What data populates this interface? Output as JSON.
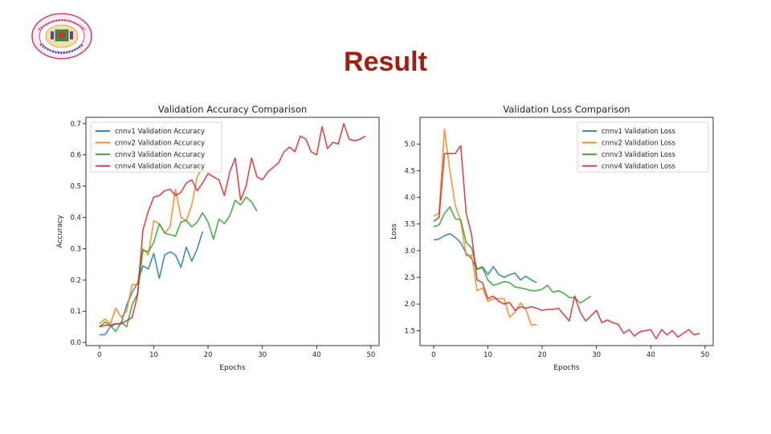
{
  "slide": {
    "title": "Result"
  },
  "colors": {
    "title": "#a51d12",
    "cnnv1": "#1f77b4",
    "cnnv2": "#ff7f0e",
    "cnnv3": "#2ca02c",
    "cnnv4": "#d62728"
  },
  "chart_data": [
    {
      "type": "line",
      "title": "Validation Accuracy Comparison",
      "xlabel": "Epochs",
      "ylabel": "Accuracy",
      "xlim": [
        -2.5,
        51.5
      ],
      "ylim": [
        -0.01,
        0.72
      ],
      "xticks": [
        0,
        10,
        20,
        30,
        40,
        50
      ],
      "yticks": [
        0.0,
        0.1,
        0.2,
        0.3,
        0.4,
        0.5,
        0.6,
        0.7
      ],
      "yticklabels": [
        "0.0",
        "0.1",
        "0.2",
        "0.3",
        "0.4",
        "0.5",
        "0.6",
        "0.7"
      ],
      "legend": "upper-left",
      "grid": false,
      "series": [
        {
          "name": "cnnv1 Validation Accuracy",
          "color": "#1f77b4",
          "x": [
            0,
            1,
            2,
            3,
            4,
            5,
            6,
            7,
            8,
            9,
            10,
            11,
            12,
            13,
            14,
            15,
            16,
            17,
            18,
            19
          ],
          "values": [
            0.025,
            0.025,
            0.05,
            0.06,
            0.06,
            0.12,
            0.16,
            0.19,
            0.245,
            0.235,
            0.285,
            0.205,
            0.28,
            0.29,
            0.28,
            0.24,
            0.305,
            0.26,
            0.3,
            0.355
          ]
        },
        {
          "name": "cnnv2 Validation Accuracy",
          "color": "#ff7f0e",
          "x": [
            0,
            1,
            2,
            3,
            4,
            5,
            6,
            7,
            8,
            9,
            10,
            11,
            12,
            13,
            14,
            15,
            16,
            17,
            18,
            19
          ],
          "values": [
            0.06,
            0.075,
            0.06,
            0.11,
            0.08,
            0.1,
            0.185,
            0.185,
            0.3,
            0.28,
            0.39,
            0.38,
            0.35,
            0.37,
            0.49,
            0.4,
            0.39,
            0.44,
            0.53,
            0.56
          ]
        },
        {
          "name": "cnnv3 Validation Accuracy",
          "color": "#2ca02c",
          "x": [
            0,
            1,
            2,
            3,
            4,
            5,
            6,
            7,
            8,
            9,
            10,
            11,
            12,
            13,
            14,
            15,
            16,
            17,
            18,
            19,
            20,
            21,
            22,
            23,
            24,
            25,
            26,
            27,
            28,
            29
          ],
          "values": [
            0.05,
            0.065,
            0.055,
            0.035,
            0.065,
            0.05,
            0.12,
            0.155,
            0.295,
            0.29,
            0.32,
            0.38,
            0.35,
            0.345,
            0.34,
            0.385,
            0.39,
            0.37,
            0.385,
            0.415,
            0.385,
            0.33,
            0.395,
            0.38,
            0.405,
            0.455,
            0.44,
            0.465,
            0.45,
            0.42
          ]
        },
        {
          "name": "cnnv4 Validation Accuracy",
          "color": "#d62728",
          "x": [
            0,
            1,
            2,
            3,
            4,
            5,
            6,
            7,
            8,
            9,
            10,
            11,
            12,
            13,
            14,
            15,
            16,
            17,
            18,
            19,
            20,
            21,
            22,
            23,
            24,
            25,
            26,
            27,
            28,
            29,
            30,
            31,
            32,
            33,
            34,
            35,
            36,
            37,
            38,
            39,
            40,
            41,
            42,
            43,
            44,
            45,
            46,
            47,
            48,
            49
          ],
          "values": [
            0.05,
            0.055,
            0.055,
            0.06,
            0.06,
            0.07,
            0.08,
            0.15,
            0.36,
            0.42,
            0.465,
            0.47,
            0.485,
            0.49,
            0.47,
            0.48,
            0.51,
            0.52,
            0.485,
            0.51,
            0.54,
            0.53,
            0.52,
            0.47,
            0.545,
            0.59,
            0.455,
            0.5,
            0.59,
            0.53,
            0.52,
            0.545,
            0.56,
            0.575,
            0.61,
            0.625,
            0.61,
            0.66,
            0.65,
            0.61,
            0.6,
            0.69,
            0.62,
            0.64,
            0.635,
            0.7,
            0.65,
            0.645,
            0.65,
            0.66
          ]
        }
      ]
    },
    {
      "type": "line",
      "title": "Validation Loss Comparison",
      "xlabel": "Epochs",
      "ylabel": "Loss",
      "xlim": [
        -2.5,
        51.5
      ],
      "ylim": [
        1.22,
        5.5
      ],
      "xticks": [
        0,
        10,
        20,
        30,
        40,
        50
      ],
      "yticks": [
        1.5,
        2.0,
        2.5,
        3.0,
        3.5,
        4.0,
        4.5,
        5.0
      ],
      "yticklabels": [
        "1.5",
        "2.0",
        "2.5",
        "3.0",
        "3.5",
        "4.0",
        "4.5",
        "5.0"
      ],
      "legend": "upper-right",
      "grid": false,
      "series": [
        {
          "name": "cnnv1 Validation Loss",
          "color": "#1f77b4",
          "x": [
            0,
            1,
            2,
            3,
            4,
            5,
            6,
            7,
            8,
            9,
            10,
            11,
            12,
            13,
            14,
            15,
            16,
            17,
            18,
            19
          ],
          "values": [
            3.2,
            3.22,
            3.28,
            3.32,
            3.25,
            3.15,
            2.95,
            2.85,
            2.65,
            2.7,
            2.55,
            2.7,
            2.55,
            2.5,
            2.55,
            2.58,
            2.45,
            2.52,
            2.45,
            2.4
          ]
        },
        {
          "name": "cnnv2 Validation Loss",
          "color": "#ff7f0e",
          "x": [
            0,
            1,
            2,
            3,
            4,
            5,
            6,
            7,
            8,
            9,
            10,
            11,
            12,
            13,
            14,
            15,
            16,
            17,
            18,
            19
          ],
          "values": [
            3.65,
            3.7,
            5.28,
            4.5,
            3.85,
            3.55,
            2.9,
            2.92,
            2.25,
            2.3,
            2.05,
            2.1,
            2.1,
            2.1,
            1.75,
            1.85,
            2.02,
            1.9,
            1.6,
            1.62
          ]
        },
        {
          "name": "cnnv3 Validation Loss",
          "color": "#2ca02c",
          "x": [
            0,
            1,
            2,
            3,
            4,
            5,
            6,
            7,
            8,
            9,
            10,
            11,
            12,
            13,
            14,
            15,
            16,
            17,
            18,
            19,
            20,
            21,
            22,
            23,
            24,
            25,
            26,
            27,
            28,
            29
          ],
          "values": [
            3.45,
            3.48,
            3.7,
            3.82,
            3.6,
            3.58,
            3.15,
            3.05,
            2.65,
            2.68,
            2.45,
            2.35,
            2.38,
            2.42,
            2.4,
            2.32,
            2.3,
            2.28,
            2.25,
            2.25,
            2.28,
            2.35,
            2.22,
            2.25,
            2.2,
            2.12,
            2.12,
            2.02,
            2.08,
            2.15
          ]
        },
        {
          "name": "cnnv4 Validation Loss",
          "color": "#d62728",
          "x": [
            0,
            1,
            2,
            3,
            4,
            5,
            6,
            7,
            8,
            9,
            10,
            11,
            12,
            13,
            14,
            15,
            16,
            17,
            18,
            19,
            20,
            21,
            22,
            23,
            24,
            25,
            26,
            27,
            28,
            29,
            30,
            31,
            32,
            33,
            34,
            35,
            36,
            37,
            38,
            39,
            40,
            41,
            42,
            43,
            44,
            45,
            46,
            47,
            48,
            49
          ],
          "values": [
            3.55,
            3.62,
            4.82,
            4.82,
            4.82,
            4.97,
            3.7,
            3.3,
            2.45,
            2.4,
            2.1,
            2.15,
            2.05,
            2.0,
            2.03,
            1.88,
            1.95,
            1.92,
            1.95,
            1.92,
            1.88,
            1.9,
            1.9,
            1.92,
            1.8,
            1.68,
            2.15,
            1.85,
            1.68,
            1.78,
            1.88,
            1.65,
            1.7,
            1.65,
            1.62,
            1.45,
            1.52,
            1.4,
            1.48,
            1.5,
            1.52,
            1.35,
            1.52,
            1.42,
            1.5,
            1.38,
            1.45,
            1.52,
            1.42,
            1.45
          ]
        }
      ]
    }
  ]
}
